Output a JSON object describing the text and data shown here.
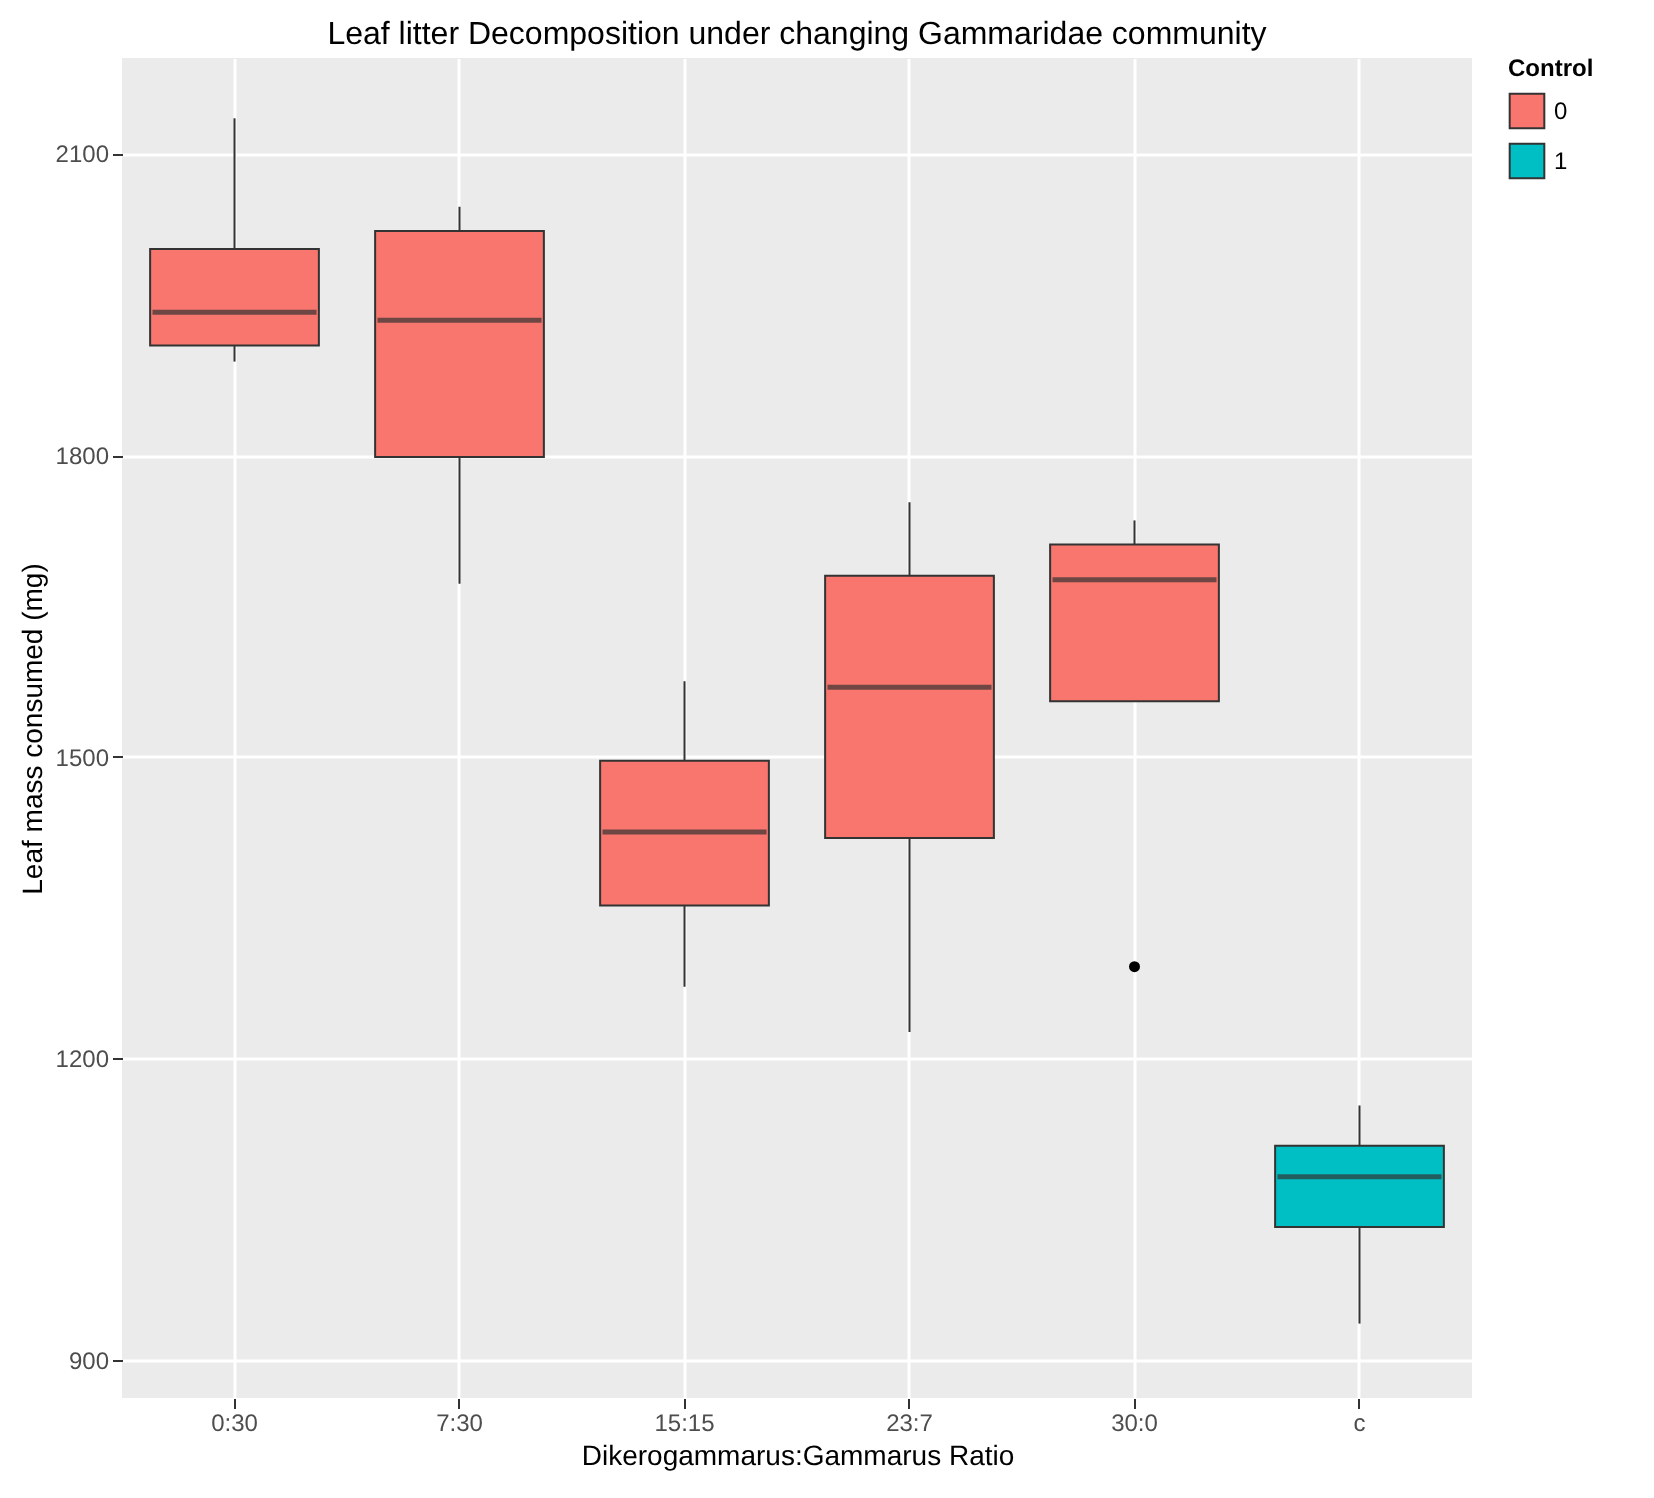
{
  "chart_data": {
    "type": "box",
    "title": "Leaf litter Decomposition under changing Gammaridae community",
    "xlabel": "Dikerogammarus:Gammarus Ratio",
    "ylabel": "Leaf mass consumed (mg)",
    "legend_title": "Control",
    "categories": [
      "0:30",
      "7:30",
      "15:15",
      "23:7",
      "30:0",
      "c"
    ],
    "series": [
      {
        "name": "0",
        "color": "#f8766d",
        "boxes": [
          {
            "low": 1893,
            "q1": 1909,
            "median": 1942,
            "q3": 2005,
            "high": 2135
          },
          {
            "low": 1672,
            "q1": 1798,
            "median": 1934,
            "q3": 2023,
            "high": 2047
          },
          {
            "low": 1271,
            "q1": 1352,
            "median": 1425,
            "q3": 1496,
            "high": 1575
          },
          {
            "low": 1226,
            "q1": 1419,
            "median": 1569,
            "q3": 1680,
            "high": 1753
          },
          {
            "low": 1555,
            "q1": 1555,
            "median": 1676,
            "q3": 1711,
            "high": 1735,
            "outliers": [
              1291
            ]
          },
          null
        ]
      },
      {
        "name": "1",
        "color": "#00bfc4",
        "boxes": [
          null,
          null,
          null,
          null,
          null,
          {
            "low": 936,
            "q1": 1032,
            "median": 1082,
            "q3": 1113,
            "high": 1153
          }
        ]
      }
    ],
    "ylim": [
      862,
      2195
    ],
    "yticks": [
      900,
      1200,
      1500,
      1800,
      2100
    ],
    "grid": true,
    "legend": "right"
  }
}
